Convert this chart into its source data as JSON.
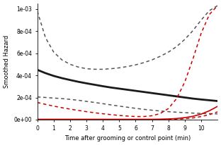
{
  "title": "",
  "xlabel": "Time after grooming or control point (min)",
  "ylabel": "Smoothed Hazard",
  "xlim": [
    0,
    11
  ],
  "ylim": [
    0,
    0.00105
  ],
  "yticks": [
    0,
    0.0002,
    0.0004,
    0.0006,
    0.0008,
    0.001
  ],
  "ytick_labels": [
    "0e+00",
    "2e-04",
    "4e-04",
    "6e-04",
    "8e-04",
    "1e-03"
  ],
  "xticks": [
    0,
    1,
    2,
    3,
    4,
    5,
    6,
    7,
    8,
    9,
    10
  ],
  "background": "#ffffff",
  "lines": [
    {
      "name": "black_solid",
      "color": "#1a1a1a",
      "linestyle": "solid",
      "linewidth": 2.0,
      "x": [
        0.0,
        0.5,
        1.0,
        1.5,
        2.0,
        2.5,
        3.0,
        3.5,
        4.0,
        4.5,
        5.0,
        5.5,
        6.0,
        6.5,
        7.0,
        7.5,
        8.0,
        8.5,
        9.0,
        9.5,
        10.0,
        10.5,
        11.0
      ],
      "y": [
        0.00045,
        0.00042,
        0.000395,
        0.000375,
        0.000358,
        0.000342,
        0.000328,
        0.000315,
        0.000302,
        0.00029,
        0.00028,
        0.00027,
        0.00026,
        0.00025,
        0.00024,
        0.00023,
        0.00022,
        0.00021,
        0.0002,
        0.00019,
        0.000182,
        0.000175,
        0.000168
      ]
    },
    {
      "name": "black_dashed_upper",
      "color": "#555555",
      "linestyle": "dashed",
      "linewidth": 1.1,
      "x": [
        0.0,
        0.5,
        1.0,
        1.5,
        2.0,
        2.5,
        3.0,
        3.5,
        4.0,
        4.5,
        5.0,
        5.5,
        6.0,
        6.5,
        7.0,
        7.5,
        8.0,
        8.5,
        9.0,
        9.5,
        10.0,
        10.5,
        11.0
      ],
      "y": [
        0.00098,
        0.00074,
        0.00061,
        0.00054,
        0.0005,
        0.000475,
        0.00046,
        0.000455,
        0.000455,
        0.00046,
        0.000468,
        0.00048,
        0.000495,
        0.000515,
        0.00054,
        0.000572,
        0.00061,
        0.00066,
        0.000725,
        0.000805,
        0.0009,
        0.000985,
        0.00103
      ]
    },
    {
      "name": "black_dashed_lower",
      "color": "#555555",
      "linestyle": "dashed",
      "linewidth": 1.1,
      "x": [
        0.0,
        0.5,
        1.0,
        1.5,
        2.0,
        2.5,
        3.0,
        3.5,
        4.0,
        4.5,
        5.0,
        5.5,
        6.0,
        6.5,
        7.0,
        7.5,
        8.0,
        8.5,
        9.0,
        9.5,
        10.0,
        10.5,
        11.0
      ],
      "y": [
        0.000205,
        0.0002,
        0.000195,
        0.00019,
        0.000183,
        0.000175,
        0.000165,
        0.000155,
        0.000144,
        0.000133,
        0.000122,
        0.000112,
        0.000102,
        9.3e-05,
        8.5e-05,
        7.8e-05,
        7.2e-05,
        6.7e-05,
        6.3e-05,
        5.9e-05,
        5.6e-05,
        5.4e-05,
        5.2e-05
      ]
    },
    {
      "name": "red_solid",
      "color": "#cc0000",
      "linestyle": "solid",
      "linewidth": 1.2,
      "x": [
        0.0,
        0.5,
        1.0,
        1.5,
        2.0,
        2.5,
        3.0,
        3.5,
        4.0,
        4.5,
        5.0,
        5.5,
        6.0,
        6.5,
        7.0,
        7.5,
        8.0,
        8.5,
        9.0,
        9.5,
        10.0,
        10.5,
        11.0
      ],
      "y": [
        3e-06,
        3e-06,
        3e-06,
        3e-06,
        3e-06,
        3e-06,
        3e-06,
        3e-06,
        3e-06,
        3e-06,
        3e-06,
        3e-06,
        3e-06,
        3e-06,
        3e-06,
        4e-06,
        6e-06,
        1e-05,
        1.8e-05,
        3e-05,
        5e-05,
        8e-05,
        0.00012
      ]
    },
    {
      "name": "red_dashed_upper",
      "color": "#cc0000",
      "linestyle": "dashed",
      "linewidth": 1.1,
      "x": [
        0.0,
        0.5,
        1.0,
        1.5,
        2.0,
        2.5,
        3.0,
        3.5,
        4.0,
        4.5,
        5.0,
        5.5,
        6.0,
        6.5,
        7.0,
        7.5,
        8.0,
        8.5,
        9.0,
        9.5,
        10.0,
        10.5,
        11.0
      ],
      "y": [
        0.000155,
        0.000138,
        0.000122,
        0.000108,
        9.5e-05,
        8.3e-05,
        7.2e-05,
        6.2e-05,
        5.3e-05,
        4.5e-05,
        3.8e-05,
        3.2e-05,
        2.8e-05,
        2.8e-05,
        3.5e-05,
        5.5e-05,
        0.0001,
        0.00019,
        0.00034,
        0.00055,
        0.00078,
        0.00095,
        0.00103
      ]
    },
    {
      "name": "red_dashed_lower",
      "color": "#cc0000",
      "linestyle": "dashed",
      "linewidth": 1.1,
      "x": [
        0.0,
        0.5,
        1.0,
        1.5,
        2.0,
        2.5,
        3.0,
        3.5,
        4.0,
        4.5,
        5.0,
        5.5,
        6.0,
        6.5,
        7.0,
        7.5,
        8.0,
        8.5,
        9.0,
        9.5,
        10.0,
        10.5,
        11.0
      ],
      "y": [
        5e-07,
        5e-07,
        5e-07,
        5e-07,
        5e-07,
        5e-07,
        5e-07,
        5e-07,
        5e-07,
        5e-07,
        5e-07,
        5e-07,
        5e-07,
        5e-07,
        5e-07,
        8e-07,
        2e-06,
        4e-06,
        8e-06,
        1.5e-05,
        2.8e-05,
        4.5e-05,
        7e-05
      ]
    }
  ]
}
